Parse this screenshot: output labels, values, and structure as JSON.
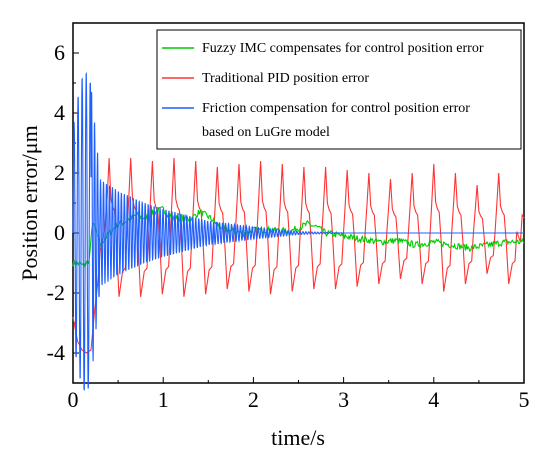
{
  "chart_data": {
    "type": "line",
    "title": "",
    "xlabel": "time/s",
    "ylabel": "Position error/μm",
    "xlim": [
      0,
      5
    ],
    "ylim": [
      -5,
      7
    ],
    "x_ticks": [
      "0",
      "1",
      "2",
      "3",
      "4",
      "5"
    ],
    "y_ticks": [
      "-4",
      "-2",
      "0",
      "2",
      "4",
      "6"
    ],
    "legend_position": "top-right",
    "series": [
      {
        "name": "Fuzzy IMC compensates for control position error",
        "color": "#00cc00",
        "x": [
          0,
          0.05,
          0.12,
          0.18,
          0.22,
          0.3,
          0.4,
          0.5,
          0.6,
          0.7,
          0.8,
          0.9,
          1.0,
          1.1,
          1.2,
          1.3,
          1.4,
          1.5,
          1.6,
          1.7,
          1.8,
          1.9,
          2.0,
          2.2,
          2.4,
          2.6,
          2.7,
          2.8,
          3.0,
          3.2,
          3.4,
          3.6,
          3.8,
          4.0,
          4.2,
          4.4,
          4.6,
          4.8,
          5.0
        ],
        "values": [
          -1.0,
          -1.0,
          -1.1,
          -0.9,
          0.4,
          -0.4,
          0.0,
          0.3,
          0.4,
          0.6,
          0.5,
          0.7,
          0.8,
          0.5,
          0.5,
          0.45,
          0.7,
          0.55,
          0.3,
          0.1,
          0.05,
          0.0,
          0.1,
          0.1,
          0.05,
          0.3,
          0.2,
          0.0,
          -0.1,
          -0.2,
          -0.3,
          -0.25,
          -0.4,
          -0.3,
          -0.4,
          -0.5,
          -0.4,
          -0.3,
          -0.3
        ]
      },
      {
        "name": "Traditional PID position error",
        "color": "#ff3333",
        "period": 0.24,
        "amplitude_peaks": [
          2.5,
          2.5,
          2.4,
          2.5,
          2.4,
          2.2,
          2.3,
          2.4,
          2.3,
          2.2,
          2.2,
          2.1,
          2.0,
          1.8,
          2.0,
          2.3,
          2.0,
          1.6,
          2.0,
          2.2
        ],
        "x": [
          0,
          0.05,
          0.1,
          0.15,
          0.2,
          0.24,
          0.28,
          0.3,
          0.35
        ],
        "values": [
          -2.8,
          -3.6,
          -3.9,
          -4.0,
          -3.9,
          -2.6,
          -1.5,
          -0.6,
          0.1
        ]
      },
      {
        "name": "Friction compensation for control position error based on LuGre model",
        "color": "#1f5fff",
        "x": [
          0,
          0.05,
          0.1,
          0.15,
          0.2,
          0.3,
          0.5,
          0.8,
          1.0,
          1.5,
          2.0,
          2.5,
          3.0,
          5.0
        ],
        "envelope": [
          3.5,
          4.5,
          5.2,
          5.4,
          5.0,
          1.8,
          1.4,
          1.0,
          0.8,
          0.4,
          0.2,
          0.05,
          0.0,
          0.0
        ],
        "values": [
          0,
          0,
          0,
          0,
          0,
          0,
          0,
          0,
          0,
          0,
          0,
          0,
          0,
          0
        ]
      }
    ]
  }
}
